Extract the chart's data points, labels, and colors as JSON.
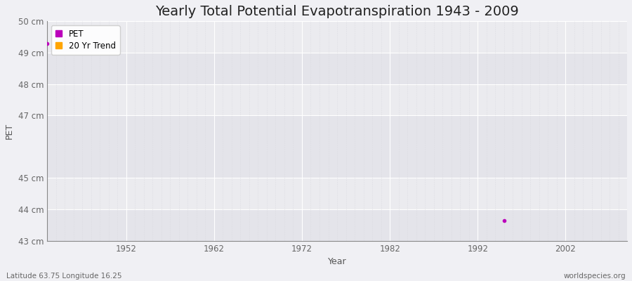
{
  "title": "Yearly Total Potential Evapotranspiration 1943 - 2009",
  "xlabel": "Year",
  "ylabel": "PET",
  "xlim": [
    1943,
    2009
  ],
  "ylim": [
    43,
    50
  ],
  "yticks": [
    43,
    44,
    45,
    47,
    48,
    49,
    50
  ],
  "ytick_labels": [
    "43 cm",
    "44 cm",
    "45 cm",
    "47 cm",
    "48 cm",
    "49 cm",
    "50 cm"
  ],
  "xticks": [
    1952,
    1962,
    1972,
    1982,
    1992,
    2002
  ],
  "data_points": [
    {
      "year": 1943,
      "value": 49.3
    },
    {
      "year": 1995,
      "value": 43.65
    }
  ],
  "pet_color": "#bb00bb",
  "trend_color": "#ffa500",
  "background_color": "#f0f0f4",
  "plot_bg_color": "#ebebef",
  "band_colors": [
    "#e4e4ea",
    "#ebebef"
  ],
  "grid_major_color": "#ffffff",
  "grid_minor_color": "#d8d8de",
  "spine_color": "#888888",
  "tick_color": "#666666",
  "label_color": "#555555",
  "title_color": "#222222",
  "legend_items": [
    "PET",
    "20 Yr Trend"
  ],
  "footer_left": "Latitude 63.75 Longitude 16.25",
  "footer_right": "worldspecies.org",
  "title_fontsize": 14,
  "axis_label_fontsize": 9,
  "tick_fontsize": 8.5,
  "footer_fontsize": 7.5
}
